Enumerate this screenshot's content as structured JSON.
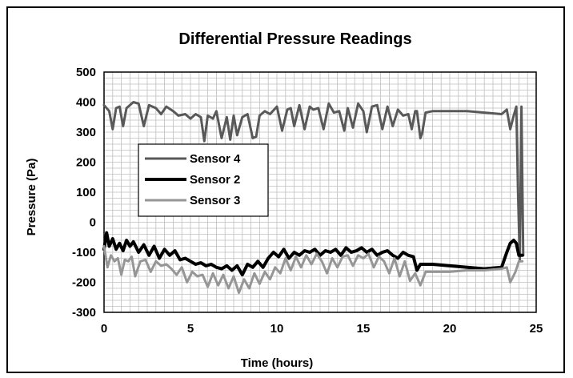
{
  "chart_data": {
    "type": "line",
    "title": "Differential Pressure Readings",
    "xlabel": "Time (hours)",
    "ylabel": "Pressure (Pa)",
    "xlim": [
      0,
      25
    ],
    "ylim": [
      -300,
      500
    ],
    "x_ticks": [
      0,
      5,
      10,
      15,
      20,
      25
    ],
    "y_ticks": [
      500,
      400,
      300,
      200,
      100,
      0,
      -100,
      -200,
      -300
    ],
    "grid": true,
    "legend_position": "left-middle",
    "series": [
      {
        "name": "Sensor 4",
        "color": "#595959",
        "width": 3,
        "x": [
          0,
          0.3,
          0.5,
          0.7,
          0.9,
          1.1,
          1.3,
          1.5,
          1.7,
          2.0,
          2.3,
          2.6,
          2.8,
          3.0,
          3.3,
          3.6,
          4.0,
          4.3,
          4.7,
          5.0,
          5.3,
          5.6,
          5.8,
          6.0,
          6.3,
          6.5,
          6.8,
          7.1,
          7.3,
          7.5,
          7.7,
          8.0,
          8.3,
          8.6,
          8.8,
          9.0,
          9.3,
          9.6,
          10.0,
          10.3,
          10.6,
          10.8,
          11.0,
          11.3,
          11.6,
          11.9,
          12.1,
          12.4,
          12.7,
          13.0,
          13.3,
          13.6,
          13.9,
          14.1,
          14.4,
          14.7,
          15.0,
          15.2,
          15.5,
          15.8,
          16.1,
          16.4,
          16.7,
          17.0,
          17.3,
          17.6,
          17.8,
          18.0,
          18.1,
          18.3,
          18.4,
          18.6,
          19.0,
          20.0,
          21.0,
          22.0,
          23.0,
          23.3,
          23.5,
          23.7,
          23.85,
          23.95,
          24.05,
          24.15,
          24.25
        ],
        "y": [
          390,
          370,
          310,
          380,
          385,
          320,
          380,
          390,
          400,
          395,
          320,
          390,
          385,
          380,
          360,
          385,
          370,
          355,
          360,
          345,
          360,
          350,
          270,
          355,
          345,
          370,
          280,
          350,
          275,
          355,
          290,
          350,
          360,
          280,
          285,
          355,
          370,
          360,
          385,
          305,
          375,
          380,
          320,
          390,
          310,
          385,
          375,
          380,
          310,
          395,
          365,
          370,
          305,
          380,
          315,
          395,
          370,
          300,
          385,
          390,
          310,
          385,
          320,
          375,
          355,
          360,
          310,
          370,
          370,
          280,
          295,
          365,
          370,
          370,
          370,
          365,
          360,
          375,
          310,
          355,
          385,
          100,
          -130,
          385,
          -110
        ]
      },
      {
        "name": "Sensor 2",
        "color": "#000000",
        "width": 4,
        "x": [
          0,
          0.15,
          0.3,
          0.5,
          0.7,
          0.9,
          1.1,
          1.3,
          1.5,
          1.7,
          2.0,
          2.3,
          2.6,
          2.9,
          3.2,
          3.5,
          3.8,
          4.1,
          4.4,
          4.7,
          5.0,
          5.3,
          5.6,
          5.9,
          6.2,
          6.5,
          6.8,
          7.1,
          7.4,
          7.7,
          8.0,
          8.3,
          8.6,
          8.9,
          9.2,
          9.5,
          9.8,
          10.1,
          10.4,
          10.7,
          11.0,
          11.3,
          11.6,
          11.9,
          12.2,
          12.5,
          12.8,
          13.1,
          13.4,
          13.7,
          14.0,
          14.3,
          14.6,
          14.9,
          15.2,
          15.5,
          15.8,
          16.1,
          16.4,
          16.7,
          17.0,
          17.3,
          17.6,
          17.9,
          18.1,
          18.3,
          18.6,
          19.0,
          20.0,
          21.0,
          22.0,
          23.0,
          23.3,
          23.5,
          23.7,
          23.85,
          24.0,
          24.2
        ],
        "y": [
          -90,
          -35,
          -80,
          -55,
          -90,
          -70,
          -95,
          -60,
          -80,
          -65,
          -100,
          -75,
          -110,
          -80,
          -120,
          -90,
          -110,
          -95,
          -125,
          -120,
          -130,
          -140,
          -135,
          -145,
          -140,
          -150,
          -155,
          -145,
          -160,
          -145,
          -175,
          -140,
          -150,
          -130,
          -150,
          -120,
          -100,
          -115,
          -90,
          -120,
          -100,
          -110,
          -95,
          -100,
          -90,
          -110,
          -95,
          -100,
          -90,
          -110,
          -85,
          -100,
          -95,
          -85,
          -100,
          -90,
          -110,
          -100,
          -95,
          -110,
          -120,
          -100,
          -110,
          -115,
          -160,
          -140,
          -140,
          -140,
          -145,
          -150,
          -155,
          -150,
          -100,
          -70,
          -60,
          -70,
          -110,
          -110
        ]
      },
      {
        "name": "Sensor 3",
        "color": "#969696",
        "width": 3,
        "x": [
          0,
          0.2,
          0.4,
          0.6,
          0.8,
          1.0,
          1.2,
          1.4,
          1.6,
          1.8,
          2.1,
          2.4,
          2.7,
          3.0,
          3.3,
          3.6,
          3.9,
          4.2,
          4.5,
          4.8,
          5.1,
          5.4,
          5.7,
          6.0,
          6.3,
          6.6,
          6.9,
          7.2,
          7.5,
          7.8,
          8.1,
          8.4,
          8.7,
          9.0,
          9.3,
          9.6,
          9.9,
          10.2,
          10.5,
          10.8,
          11.1,
          11.4,
          11.7,
          12.0,
          12.3,
          12.6,
          12.9,
          13.2,
          13.5,
          13.8,
          14.1,
          14.4,
          14.7,
          15.0,
          15.3,
          15.6,
          15.9,
          16.2,
          16.5,
          16.8,
          17.1,
          17.4,
          17.7,
          18.0,
          18.3,
          18.6,
          19.0,
          20.0,
          21.0,
          22.0,
          23.0,
          23.3,
          23.5,
          23.8,
          24.0,
          24.2
        ],
        "y": [
          -80,
          -150,
          -110,
          -130,
          -120,
          -175,
          -125,
          -130,
          -115,
          -180,
          -130,
          -125,
          -165,
          -130,
          -145,
          -140,
          -155,
          -175,
          -150,
          -200,
          -165,
          -180,
          -175,
          -215,
          -170,
          -210,
          -175,
          -220,
          -180,
          -235,
          -190,
          -220,
          -170,
          -205,
          -165,
          -190,
          -150,
          -170,
          -120,
          -160,
          -115,
          -150,
          -110,
          -140,
          -105,
          -130,
          -170,
          -120,
          -150,
          -115,
          -110,
          -145,
          -110,
          -120,
          -105,
          -150,
          -115,
          -130,
          -170,
          -120,
          -180,
          -130,
          -195,
          -170,
          -210,
          -165,
          -165,
          -165,
          -160,
          -160,
          -155,
          -150,
          -200,
          -165,
          -130,
          -130
        ]
      }
    ]
  }
}
